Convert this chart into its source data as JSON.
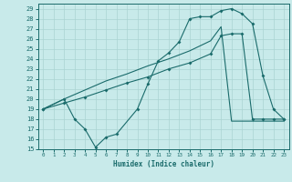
{
  "title": "",
  "xlabel": "Humidex (Indice chaleur)",
  "bg_color": "#c8eaea",
  "grid_color": "#aad4d2",
  "line_color": "#1a6b6b",
  "xlim": [
    -0.5,
    23.5
  ],
  "ylim": [
    15,
    29.5
  ],
  "xticks": [
    0,
    1,
    2,
    3,
    4,
    5,
    6,
    7,
    8,
    9,
    10,
    11,
    12,
    13,
    14,
    15,
    16,
    17,
    18,
    19,
    20,
    21,
    22,
    23
  ],
  "yticks": [
    15,
    16,
    17,
    18,
    19,
    20,
    21,
    22,
    23,
    24,
    25,
    26,
    27,
    28,
    29
  ],
  "c1x": [
    0,
    2,
    3,
    4,
    5,
    6,
    7,
    9,
    10,
    11,
    12,
    13,
    14,
    15,
    16,
    17,
    18,
    19,
    20,
    21,
    22,
    23
  ],
  "c1y": [
    19.0,
    20.0,
    18.0,
    17.0,
    15.2,
    16.2,
    16.5,
    19.0,
    21.5,
    23.8,
    24.6,
    25.7,
    28.0,
    28.2,
    28.2,
    28.8,
    29.0,
    28.5,
    27.5,
    22.3,
    19.0,
    18.0
  ],
  "c2x": [
    0,
    2,
    4,
    6,
    8,
    10,
    12,
    14,
    16,
    17,
    18,
    19,
    20,
    21,
    22,
    23
  ],
  "c2y": [
    19.0,
    19.6,
    20.2,
    20.9,
    21.6,
    22.2,
    23.0,
    23.6,
    24.5,
    26.3,
    26.5,
    26.5,
    18.0,
    18.0,
    18.0,
    18.0
  ],
  "c3x": [
    0,
    2,
    4,
    6,
    8,
    10,
    12,
    14,
    16,
    17,
    18,
    19,
    20,
    21,
    22,
    23
  ],
  "c3y": [
    19.0,
    20.0,
    20.9,
    21.8,
    22.5,
    23.3,
    24.0,
    24.8,
    25.8,
    27.2,
    17.8,
    17.8,
    17.8,
    17.8,
    17.8,
    17.8
  ]
}
